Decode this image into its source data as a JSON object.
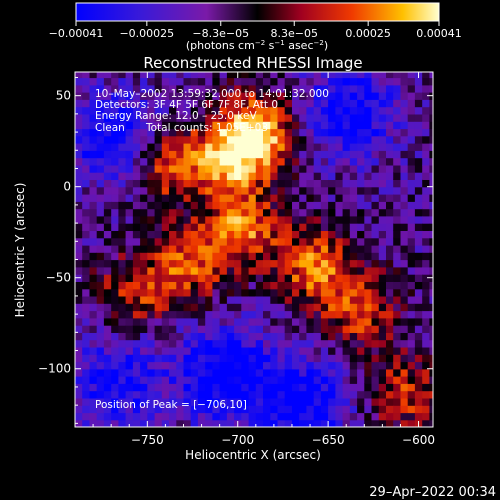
{
  "chart_data": {
    "type": "heatmap",
    "title": "Reconstructed RHESSI Image",
    "xlabel": "Heliocentric X (arcsec)",
    "ylabel": "Heliocentric Y (arcsec)",
    "xlim": [
      -790,
      -592
    ],
    "ylim": [
      -132,
      63
    ],
    "x_ticks": [
      -750,
      -700,
      -650,
      -600
    ],
    "x_tick_labels": [
      "−750",
      "−700",
      "−650",
      "−600"
    ],
    "y_ticks": [
      50,
      0,
      -50,
      -100
    ],
    "y_tick_labels": [
      "50",
      "0",
      "−50",
      "−100"
    ],
    "colorbar": {
      "range": [
        -0.00041,
        0.00041
      ],
      "tick_values": [
        -0.00041,
        -0.00025,
        -8.3e-05,
        8.3e-05,
        0.00025,
        0.00041
      ],
      "tick_labels": [
        "−0.00041",
        "−0.00025",
        "−8.3e−05",
        "8.3e−05",
        "0.00025",
        "0.00041"
      ],
      "units_text": "(photons cm",
      "units_exp1": "−2",
      "units_mid": " s",
      "units_exp2": "−1",
      "units_mid2": " asec",
      "units_exp3": "−2",
      "units_end": ")"
    },
    "annotations": {
      "line1": "10–May–2002 13:59:32.000 to 14:01:32.000",
      "line2": "Detectors: 3F 4F 5F 6F 7F 8F, Att 0",
      "line3": "Energy Range: 12.0 – 25.0 keV",
      "line4_left": "Clean",
      "line4_right": "Total counts: 1.05E+03",
      "peak": "Position of Peak = [−706,10]"
    },
    "peak_position": [
      -706,
      10
    ],
    "image_summary": {
      "peak_value_fraction": 1.0,
      "bright_regions": [
        {
          "x": -705,
          "y": 15,
          "level": 1.0
        },
        {
          "x": -690,
          "y": 30,
          "level": 0.9
        },
        {
          "x": -700,
          "y": -25,
          "level": 0.85
        },
        {
          "x": -740,
          "y": 10,
          "level": 0.75
        },
        {
          "x": -660,
          "y": -45,
          "level": 0.8
        },
        {
          "x": -730,
          "y": -45,
          "level": 0.7
        },
        {
          "x": -635,
          "y": -70,
          "level": 0.7
        },
        {
          "x": -760,
          "y": -60,
          "level": 0.55
        },
        {
          "x": -610,
          "y": -115,
          "level": 0.6
        }
      ],
      "dim_regions": [
        {
          "x": -770,
          "y": 25,
          "level": -0.7
        },
        {
          "x": -640,
          "y": 40,
          "level": -0.7
        },
        {
          "x": -710,
          "y": -105,
          "level": -0.8
        },
        {
          "x": -665,
          "y": -120,
          "level": -0.7
        },
        {
          "x": -770,
          "y": -110,
          "level": -0.6
        }
      ]
    }
  },
  "footer": {
    "timestamp": "29–Apr–2022 00:34"
  }
}
